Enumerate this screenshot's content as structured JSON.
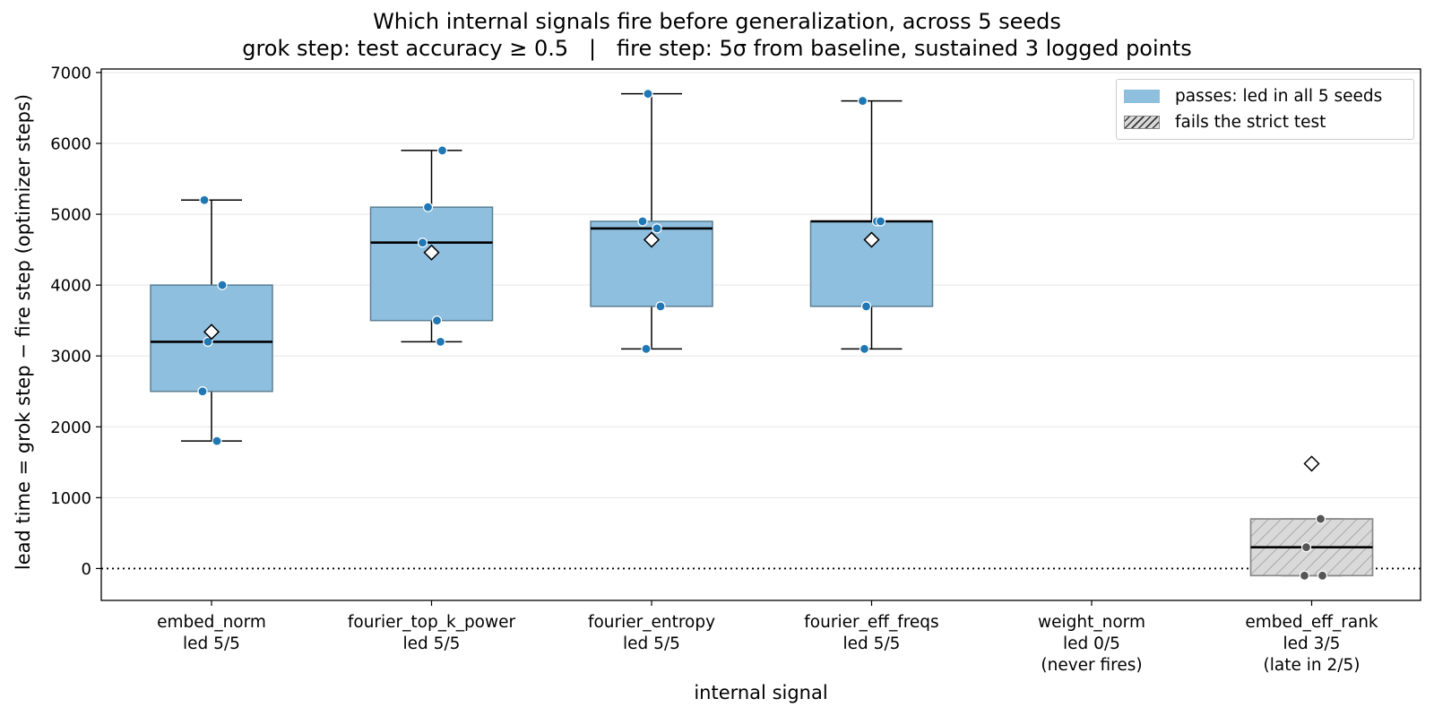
{
  "chart_data": {
    "type": "box",
    "title": "Which internal signals fire before generalization, across 5 seeds",
    "subtitle": "grok step: test accuracy ≥ 0.5   |   fire step: 5σ from baseline, sustained 3 logged points",
    "xlabel": "internal signal",
    "ylabel": "lead time = grok step − fire step  (optimizer steps)",
    "ylim": [
      -450,
      7050
    ],
    "yticks": [
      0,
      1000,
      2000,
      3000,
      4000,
      5000,
      6000,
      7000
    ],
    "grid": "horizontal",
    "reference_line": 0,
    "legend_position": "top-right",
    "legend": [
      {
        "label": "passes: led in all 5 seeds",
        "style": "filled-blue"
      },
      {
        "label": "fails the strict test",
        "style": "hatched-gray"
      }
    ],
    "colors": {
      "pass_fill": "#8fbfdf",
      "pass_edge": "#5a7f93",
      "pass_point": "#1f77b4",
      "fail_fill": "#d9d9d9",
      "fail_edge": "#8a8a8a",
      "fail_point": "#555555"
    },
    "categories": [
      {
        "name": "embed_norm",
        "labels": [
          "embed_norm",
          "led 5/5"
        ],
        "status": "pass",
        "box": {
          "whislo": 1800,
          "q1": 2500,
          "med": 3200,
          "q3": 4000,
          "whishi": 5200,
          "mean": 3340
        },
        "points": [
          5200,
          4000,
          3200,
          2500,
          1800
        ]
      },
      {
        "name": "fourier_top_k_power",
        "labels": [
          "fourier_top_k_power",
          "led 5/5"
        ],
        "status": "pass",
        "box": {
          "whislo": 3200,
          "q1": 3500,
          "med": 4600,
          "q3": 5100,
          "whishi": 5900,
          "mean": 4460
        },
        "points": [
          5900,
          5100,
          4600,
          3500,
          3200
        ]
      },
      {
        "name": "fourier_entropy",
        "labels": [
          "fourier_entropy",
          "led 5/5"
        ],
        "status": "pass",
        "box": {
          "whislo": 3100,
          "q1": 3700,
          "med": 4800,
          "q3": 4900,
          "whishi": 6700,
          "mean": 4640
        },
        "points": [
          6700,
          4900,
          4800,
          3700,
          3100
        ]
      },
      {
        "name": "fourier_eff_freqs",
        "labels": [
          "fourier_eff_freqs",
          "led 5/5"
        ],
        "status": "pass",
        "box": {
          "whislo": 3100,
          "q1": 3700,
          "med": 4900,
          "q3": 4900,
          "whishi": 6600,
          "mean": 4640
        },
        "points": [
          6600,
          4900,
          4900,
          3700,
          3100
        ]
      },
      {
        "name": "weight_norm",
        "labels": [
          "weight_norm",
          "led 0/5",
          "(never fires)"
        ],
        "status": "none",
        "box": null,
        "points": []
      },
      {
        "name": "embed_eff_rank",
        "labels": [
          "embed_eff_rank",
          "led 3/5",
          "(late in 2/5)"
        ],
        "status": "fail",
        "box": {
          "whislo": -100,
          "q1": -100,
          "med": 300,
          "q3": 700,
          "whishi": 700,
          "mean": 1480
        },
        "points": [
          700,
          300,
          -100,
          -100
        ]
      }
    ]
  }
}
